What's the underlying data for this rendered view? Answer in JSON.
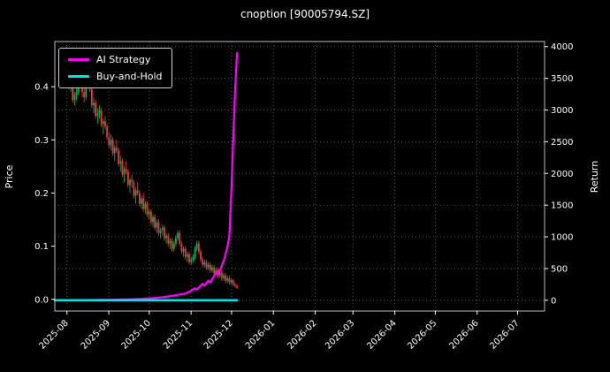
{
  "chart_data": {
    "type": "candlestick+line",
    "title": "cnoption [90005794.SZ]",
    "ylabel_left": "Price",
    "ylabel_right": "Return",
    "x_tick_labels": [
      "2025-08",
      "2025-09",
      "2025-10",
      "2025-11",
      "2025-12",
      "2026-01",
      "2026-02",
      "2026-03",
      "2026-04",
      "2026-05",
      "2026-06",
      "2026-07"
    ],
    "month_tick_days": [
      0,
      31,
      61,
      92,
      122,
      153,
      184,
      212,
      243,
      273,
      304,
      334
    ],
    "x_range_days": [
      -9,
      354
    ],
    "y_left_ticks": [
      0.0,
      0.1,
      0.2,
      0.3,
      0.4
    ],
    "y_left_range": [
      -0.022,
      0.485
    ],
    "y_right_ticks": [
      0,
      500,
      1000,
      1500,
      2000,
      2500,
      3000,
      3500,
      4000
    ],
    "y_right_range": [
      -170,
      4080
    ],
    "grid": {
      "on": true,
      "color": "#6a6a6a",
      "style": "dotted"
    },
    "colors": {
      "background": "#000000",
      "text": "#ffffff",
      "spine": "#bdbdbd",
      "candle_up": "#00b060",
      "candle_down": "#fe3032"
    },
    "candles": {
      "start_date": "2025-08-01",
      "trading_day_step_days": 1.416,
      "ohlc": [
        [
          0.44,
          0.475,
          0.41,
          0.42
        ],
        [
          0.42,
          0.43,
          0.395,
          0.4
        ],
        [
          0.4,
          0.415,
          0.39,
          0.41
        ],
        [
          0.41,
          0.42,
          0.37,
          0.375
        ],
        [
          0.375,
          0.39,
          0.365,
          0.385
        ],
        [
          0.385,
          0.4,
          0.375,
          0.39
        ],
        [
          0.39,
          0.42,
          0.385,
          0.415
        ],
        [
          0.415,
          0.43,
          0.4,
          0.405
        ],
        [
          0.405,
          0.41,
          0.38,
          0.39
        ],
        [
          0.39,
          0.4,
          0.37,
          0.38
        ],
        [
          0.38,
          0.42,
          0.375,
          0.41
        ],
        [
          0.41,
          0.435,
          0.4,
          0.42
        ],
        [
          0.42,
          0.425,
          0.39,
          0.395
        ],
        [
          0.395,
          0.4,
          0.36,
          0.365
        ],
        [
          0.365,
          0.38,
          0.35,
          0.37
        ],
        [
          0.37,
          0.375,
          0.34,
          0.345
        ],
        [
          0.345,
          0.36,
          0.33,
          0.35
        ],
        [
          0.35,
          0.365,
          0.34,
          0.355
        ],
        [
          0.355,
          0.36,
          0.325,
          0.33
        ],
        [
          0.33,
          0.34,
          0.31,
          0.335
        ],
        [
          0.335,
          0.345,
          0.32,
          0.325
        ],
        [
          0.325,
          0.33,
          0.3,
          0.305
        ],
        [
          0.305,
          0.315,
          0.285,
          0.29
        ],
        [
          0.29,
          0.31,
          0.28,
          0.3
        ],
        [
          0.3,
          0.305,
          0.27,
          0.275
        ],
        [
          0.275,
          0.29,
          0.26,
          0.285
        ],
        [
          0.285,
          0.3,
          0.275,
          0.28
        ],
        [
          0.28,
          0.285,
          0.25,
          0.255
        ],
        [
          0.255,
          0.27,
          0.24,
          0.26
        ],
        [
          0.26,
          0.265,
          0.23,
          0.235
        ],
        [
          0.235,
          0.25,
          0.22,
          0.245
        ],
        [
          0.245,
          0.26,
          0.235,
          0.24
        ],
        [
          0.24,
          0.245,
          0.21,
          0.215
        ],
        [
          0.215,
          0.23,
          0.2,
          0.225
        ],
        [
          0.225,
          0.235,
          0.21,
          0.22
        ],
        [
          0.22,
          0.225,
          0.19,
          0.195
        ],
        [
          0.195,
          0.21,
          0.18,
          0.205
        ],
        [
          0.205,
          0.22,
          0.195,
          0.2
        ],
        [
          0.2,
          0.205,
          0.175,
          0.18
        ],
        [
          0.18,
          0.195,
          0.17,
          0.19
        ],
        [
          0.19,
          0.2,
          0.165,
          0.17
        ],
        [
          0.17,
          0.185,
          0.16,
          0.18
        ],
        [
          0.18,
          0.185,
          0.155,
          0.16
        ],
        [
          0.16,
          0.17,
          0.15,
          0.165
        ],
        [
          0.165,
          0.17,
          0.14,
          0.145
        ],
        [
          0.145,
          0.16,
          0.135,
          0.155
        ],
        [
          0.155,
          0.16,
          0.13,
          0.135
        ],
        [
          0.135,
          0.15,
          0.125,
          0.145
        ],
        [
          0.145,
          0.15,
          0.12,
          0.125
        ],
        [
          0.125,
          0.135,
          0.115,
          0.13
        ],
        [
          0.13,
          0.14,
          0.12,
          0.135
        ],
        [
          0.135,
          0.14,
          0.11,
          0.115
        ],
        [
          0.115,
          0.125,
          0.105,
          0.12
        ],
        [
          0.12,
          0.125,
          0.1,
          0.105
        ],
        [
          0.105,
          0.115,
          0.095,
          0.11
        ],
        [
          0.11,
          0.115,
          0.09,
          0.095
        ],
        [
          0.095,
          0.11,
          0.09,
          0.105
        ],
        [
          0.105,
          0.12,
          0.1,
          0.115
        ],
        [
          0.115,
          0.13,
          0.11,
          0.125
        ],
        [
          0.125,
          0.13,
          0.1,
          0.105
        ],
        [
          0.105,
          0.11,
          0.085,
          0.09
        ],
        [
          0.09,
          0.1,
          0.08,
          0.095
        ],
        [
          0.095,
          0.1,
          0.075,
          0.08
        ],
        [
          0.08,
          0.09,
          0.07,
          0.085
        ],
        [
          0.085,
          0.09,
          0.065,
          0.07
        ],
        [
          0.07,
          0.08,
          0.065,
          0.075
        ],
        [
          0.075,
          0.085,
          0.07,
          0.08
        ],
        [
          0.08,
          0.1,
          0.075,
          0.095
        ],
        [
          0.095,
          0.11,
          0.09,
          0.105
        ],
        [
          0.105,
          0.11,
          0.085,
          0.09
        ],
        [
          0.09,
          0.095,
          0.07,
          0.075
        ],
        [
          0.075,
          0.08,
          0.06,
          0.065
        ],
        [
          0.065,
          0.075,
          0.06,
          0.07
        ],
        [
          0.07,
          0.075,
          0.055,
          0.06
        ],
        [
          0.06,
          0.07,
          0.055,
          0.065
        ],
        [
          0.065,
          0.07,
          0.05,
          0.055
        ],
        [
          0.055,
          0.065,
          0.05,
          0.06
        ],
        [
          0.06,
          0.065,
          0.045,
          0.05
        ],
        [
          0.05,
          0.06,
          0.045,
          0.055
        ],
        [
          0.055,
          0.06,
          0.04,
          0.045
        ],
        [
          0.045,
          0.055,
          0.04,
          0.05
        ],
        [
          0.05,
          0.055,
          0.035,
          0.04
        ],
        [
          0.04,
          0.05,
          0.035,
          0.045
        ],
        [
          0.045,
          0.05,
          0.03,
          0.035
        ],
        [
          0.035,
          0.045,
          0.03,
          0.04
        ],
        [
          0.04,
          0.045,
          0.028,
          0.032
        ],
        [
          0.032,
          0.04,
          0.028,
          0.036
        ],
        [
          0.036,
          0.038,
          0.025,
          0.028
        ],
        [
          0.028,
          0.032,
          0.022,
          0.025
        ],
        [
          0.025,
          0.028,
          0.02,
          0.022
        ]
      ]
    },
    "series": [
      {
        "name": "AI Strategy",
        "color": "#ff00ff",
        "axis": "right",
        "values": [
          0,
          0,
          0,
          1,
          1,
          1,
          2,
          2,
          2,
          3,
          3,
          3,
          4,
          4,
          4,
          5,
          5,
          5,
          6,
          6,
          7,
          7,
          8,
          8,
          9,
          9,
          10,
          10,
          11,
          12,
          12,
          13,
          14,
          15,
          16,
          17,
          18,
          19,
          20,
          22,
          24,
          26,
          28,
          30,
          32,
          34,
          36,
          38,
          40,
          44,
          48,
          52,
          56,
          60,
          65,
          70,
          75,
          80,
          85,
          90,
          95,
          100,
          110,
          120,
          135,
          150,
          170,
          190,
          170,
          200,
          230,
          260,
          230,
          270,
          310,
          280,
          330,
          380,
          440,
          400,
          470,
          540,
          620,
          720,
          850,
          1000,
          1700,
          2500,
          3300,
          3900
        ]
      },
      {
        "name": "Buy-and-Hold",
        "color": "#00e5e5",
        "axis": "right",
        "constant_value": 0
      }
    ],
    "legend_position": "upper-left"
  }
}
